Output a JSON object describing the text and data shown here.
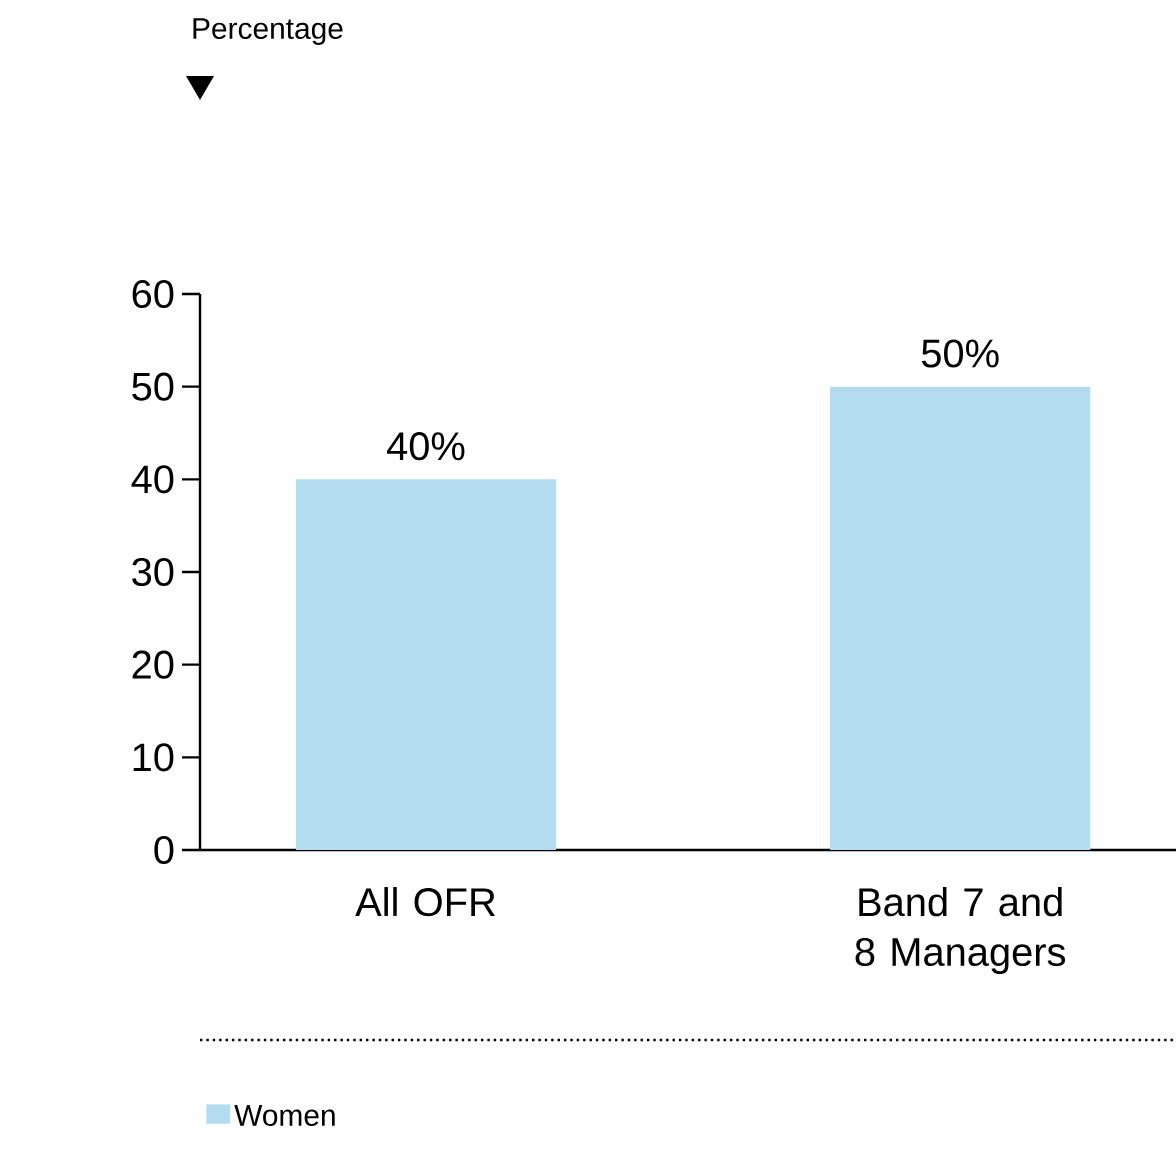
{
  "chart_data": {
    "type": "bar",
    "annotations": [
      "Percentage"
    ],
    "categories": [
      "All OFR",
      "Band 7 and 8 Managers"
    ],
    "series": [
      {
        "name": "Women",
        "color": "#b3dcf1",
        "values": [
          40,
          50
        ],
        "value_labels": [
          "40%",
          "50%"
        ]
      }
    ],
    "ylim": [
      0,
      60
    ],
    "yticks": [
      0,
      10,
      20,
      30,
      40,
      50,
      60
    ],
    "legend": "bottom",
    "grid": false
  }
}
